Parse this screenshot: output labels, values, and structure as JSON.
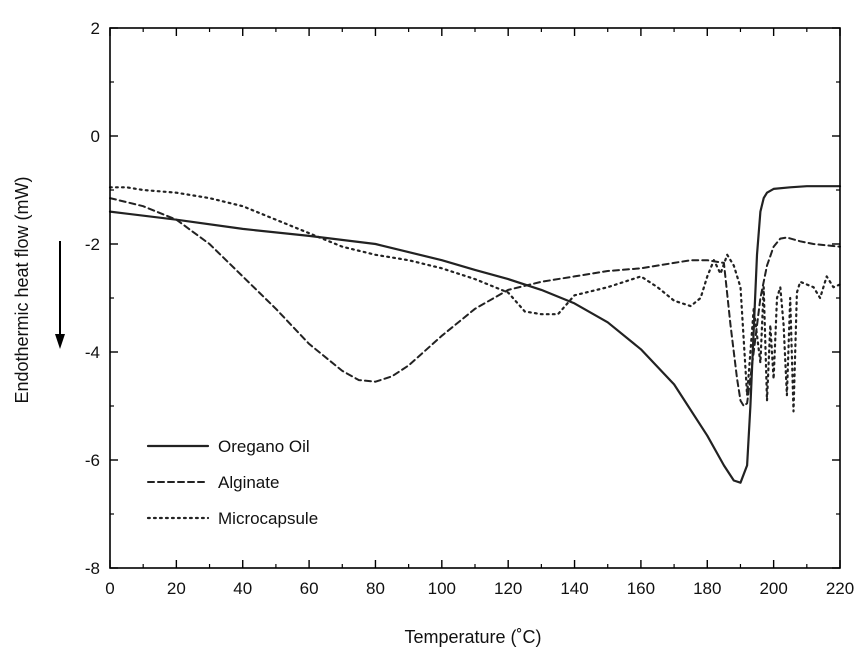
{
  "chart_data": {
    "type": "line",
    "xlabel": "Temperature (˚C)",
    "ylabel": "Endothermic heat flow (mW)",
    "xlim": [
      0,
      220
    ],
    "ylim": [
      -8,
      2
    ],
    "xticks": [
      0,
      20,
      40,
      60,
      80,
      100,
      120,
      140,
      160,
      180,
      200,
      220
    ],
    "yticks": [
      -8,
      -6,
      -4,
      -2,
      0,
      2
    ],
    "grid": false,
    "legend_position": "bottom-left",
    "series": [
      {
        "name": "Oregano Oil",
        "style": "solid",
        "x": [
          0,
          20,
          40,
          60,
          80,
          100,
          110,
          120,
          130,
          140,
          150,
          160,
          170,
          180,
          185,
          188,
          190,
          192,
          193,
          194,
          195,
          196,
          197,
          198,
          200,
          205,
          210,
          220
        ],
        "y": [
          -1.4,
          -1.55,
          -1.72,
          -1.85,
          -2.0,
          -2.3,
          -2.48,
          -2.65,
          -2.85,
          -3.1,
          -3.45,
          -3.95,
          -4.6,
          -5.55,
          -6.1,
          -6.38,
          -6.42,
          -6.1,
          -5.0,
          -3.6,
          -2.2,
          -1.4,
          -1.15,
          -1.05,
          -0.98,
          -0.95,
          -0.93,
          -0.93
        ]
      },
      {
        "name": "Alginate",
        "style": "dashed",
        "x": [
          0,
          10,
          20,
          30,
          40,
          50,
          60,
          70,
          75,
          80,
          85,
          90,
          100,
          110,
          120,
          130,
          140,
          150,
          160,
          170,
          175,
          180,
          185,
          187,
          189,
          190,
          191,
          192,
          194,
          196,
          198,
          200,
          202,
          204,
          208,
          212,
          220
        ],
        "y": [
          -1.15,
          -1.3,
          -1.55,
          -2.0,
          -2.6,
          -3.2,
          -3.85,
          -4.35,
          -4.52,
          -4.55,
          -4.45,
          -4.25,
          -3.7,
          -3.2,
          -2.85,
          -2.7,
          -2.6,
          -2.5,
          -2.45,
          -2.35,
          -2.3,
          -2.3,
          -2.35,
          -3.5,
          -4.5,
          -4.9,
          -5.0,
          -4.95,
          -4.0,
          -3.0,
          -2.4,
          -2.05,
          -1.9,
          -1.88,
          -1.95,
          -2.0,
          -2.05
        ]
      },
      {
        "name": "Microcapsule",
        "style": "dotted",
        "x": [
          0,
          5,
          10,
          20,
          30,
          40,
          50,
          60,
          70,
          80,
          90,
          100,
          110,
          120,
          125,
          130,
          135,
          140,
          150,
          160,
          165,
          170,
          175,
          178,
          180,
          182,
          184,
          186,
          188,
          190,
          192,
          194,
          196,
          197,
          198,
          199,
          200,
          201,
          202,
          203,
          204,
          205,
          206,
          207,
          208,
          210,
          212,
          214,
          216,
          218,
          220
        ],
        "y": [
          -0.95,
          -0.95,
          -1.0,
          -1.05,
          -1.15,
          -1.3,
          -1.55,
          -1.8,
          -2.05,
          -2.2,
          -2.3,
          -2.45,
          -2.65,
          -2.9,
          -3.25,
          -3.3,
          -3.3,
          -2.95,
          -2.8,
          -2.6,
          -2.8,
          -3.05,
          -3.15,
          -3.0,
          -2.6,
          -2.3,
          -2.55,
          -2.2,
          -2.4,
          -2.8,
          -4.8,
          -3.2,
          -4.2,
          -2.8,
          -4.9,
          -3.5,
          -4.5,
          -3.0,
          -2.8,
          -3.5,
          -4.8,
          -3.0,
          -5.1,
          -2.9,
          -2.7,
          -2.75,
          -2.8,
          -3.0,
          -2.6,
          -2.8,
          -2.75
        ]
      }
    ]
  }
}
